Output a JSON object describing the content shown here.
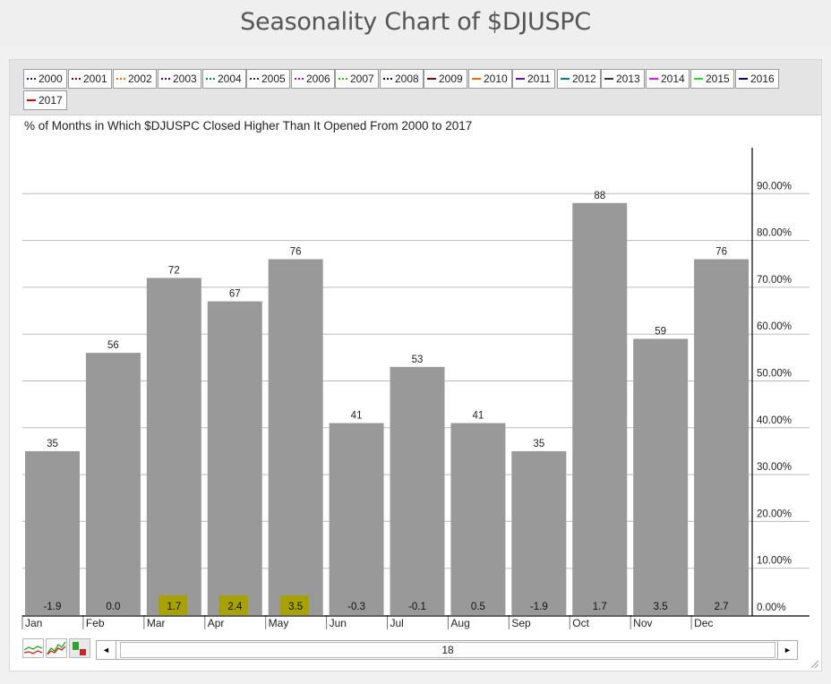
{
  "page": {
    "title": "Seasonality Chart of $DJUSPC"
  },
  "legend": {
    "items": [
      {
        "label": "2000",
        "color": "#1a1a8c",
        "style": "dotted"
      },
      {
        "label": "2001",
        "color": "#8b0000",
        "style": "dotted"
      },
      {
        "label": "2002",
        "color": "#ff6600",
        "style": "dotted"
      },
      {
        "label": "2003",
        "color": "#4b0082",
        "style": "dotted"
      },
      {
        "label": "2004",
        "color": "#008080",
        "style": "dotted"
      },
      {
        "label": "2005",
        "color": "#333333",
        "style": "dotted"
      },
      {
        "label": "2006",
        "color": "#cc00cc",
        "style": "dotted"
      },
      {
        "label": "2007",
        "color": "#22bb22",
        "style": "dotted"
      },
      {
        "label": "2008",
        "color": "#000080",
        "style": "dotted"
      },
      {
        "label": "2009",
        "color": "#8b0000",
        "style": "solid"
      },
      {
        "label": "2010",
        "color": "#ff6600",
        "style": "solid"
      },
      {
        "label": "2011",
        "color": "#6a0dad",
        "style": "solid"
      },
      {
        "label": "2012",
        "color": "#008080",
        "style": "solid"
      },
      {
        "label": "2013",
        "color": "#333333",
        "style": "solid"
      },
      {
        "label": "2014",
        "color": "#ff00ff",
        "style": "solid"
      },
      {
        "label": "2015",
        "color": "#22dd22",
        "style": "solid"
      },
      {
        "label": "2016",
        "color": "#000080",
        "style": "solid"
      },
      {
        "label": "2017",
        "color": "#dd0000",
        "style": "solid"
      }
    ]
  },
  "chart_data": {
    "type": "bar",
    "title": "% of Months in Which $DJUSPC Closed Higher Than It Opened From 2000 to 2017",
    "categories": [
      "Jan",
      "Feb",
      "Mar",
      "Apr",
      "May",
      "Jun",
      "Jul",
      "Aug",
      "Sep",
      "Oct",
      "Nov",
      "Dec"
    ],
    "values": [
      35,
      56,
      72,
      67,
      76,
      41,
      53,
      41,
      35,
      88,
      59,
      76
    ],
    "bar_labels": [
      "35",
      "56",
      "72",
      "67",
      "76",
      "41",
      "53",
      "41",
      "35",
      "88",
      "59",
      "76"
    ],
    "avg_returns": [
      "-1.9",
      "0.0",
      "1.7",
      "2.4",
      "3.5",
      "-0.3",
      "-0.1",
      "0.5",
      "-1.9",
      "1.7",
      "3.5",
      "2.7"
    ],
    "highlighted_months": [
      "Mar",
      "Apr",
      "May"
    ],
    "y_ticks": [
      "0.00%",
      "10.00%",
      "20.00%",
      "30.00%",
      "40.00%",
      "50.00%",
      "60.00%",
      "70.00%",
      "80.00%",
      "90.00%"
    ],
    "ylim": [
      0,
      100
    ],
    "y_axis_side": "right",
    "grid": true,
    "bar_color": "#999999",
    "highlight_color": "#a8a200"
  },
  "scrollbar": {
    "label": "18",
    "left_arrow": "◄",
    "right_arrow": "►"
  }
}
